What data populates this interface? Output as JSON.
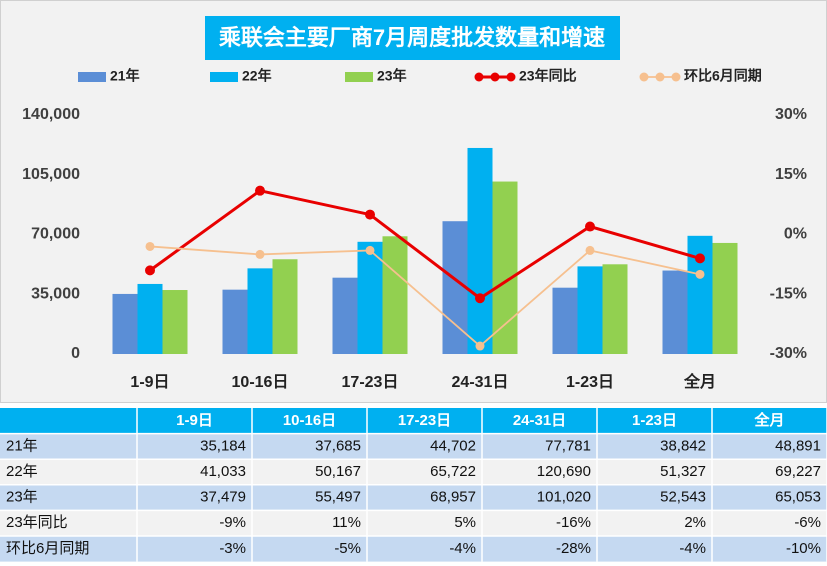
{
  "chart_data": {
    "type": "bar",
    "title": "乘联会主要厂商7月周度批发数量和增速",
    "categories": [
      "1-9日",
      "10-16日",
      "17-23日",
      "24-31日",
      "1-23日",
      "全月"
    ],
    "series": [
      {
        "name": "21年",
        "color": "#5b8ed6",
        "values": [
          35184,
          37685,
          44702,
          77781,
          38842,
          48891
        ],
        "value_labels": [
          "35,184",
          "37,685",
          "44,702",
          "77,781",
          "38,842",
          "48,891"
        ]
      },
      {
        "name": "22年",
        "color": "#00b0f0",
        "values": [
          41033,
          50167,
          65722,
          120690,
          51327,
          69227
        ],
        "value_labels": [
          "41,033",
          "50,167",
          "65,722",
          "120,690",
          "51,327",
          "69,227"
        ]
      },
      {
        "name": "23年",
        "color": "#92d050",
        "values": [
          37479,
          55497,
          68957,
          101020,
          52543,
          65053
        ],
        "value_labels": [
          "37,479",
          "55,497",
          "68,957",
          "101,020",
          "52,543",
          "65,053"
        ]
      },
      {
        "name": "23年同比",
        "type": "line",
        "axis": "y2",
        "color": "#e80000",
        "values": [
          -9,
          11,
          5,
          -16,
          2,
          -6
        ],
        "value_labels": [
          "-9%",
          "11%",
          "5%",
          "-16%",
          "2%",
          "-6%"
        ]
      },
      {
        "name": "环比6月同期",
        "type": "line",
        "axis": "y2",
        "color": "#f6c08f",
        "values": [
          -3,
          -5,
          -4,
          -28,
          -4,
          -10
        ],
        "value_labels": [
          "-3%",
          "-5%",
          "-4%",
          "-28%",
          "-4%",
          "-10%"
        ]
      }
    ],
    "ylim": [
      0,
      140000
    ],
    "yticks": [
      0,
      {
        "value": 35000,
        "label": "35,000"
      },
      {
        "value": 70000,
        "label": "70,000"
      },
      {
        "value": 105000,
        "label": "105,000"
      },
      {
        "value": 140000,
        "label": "140,000"
      }
    ],
    "y2lim": [
      -30,
      30
    ],
    "y2ticks": [
      {
        "value": -30,
        "label": "-30%"
      },
      {
        "value": -15,
        "label": "-15%"
      },
      {
        "value": 0,
        "label": "0%"
      },
      {
        "value": 15,
        "label": "15%"
      },
      {
        "value": 30,
        "label": "30%"
      }
    ],
    "grid": false,
    "legend": "top"
  }
}
